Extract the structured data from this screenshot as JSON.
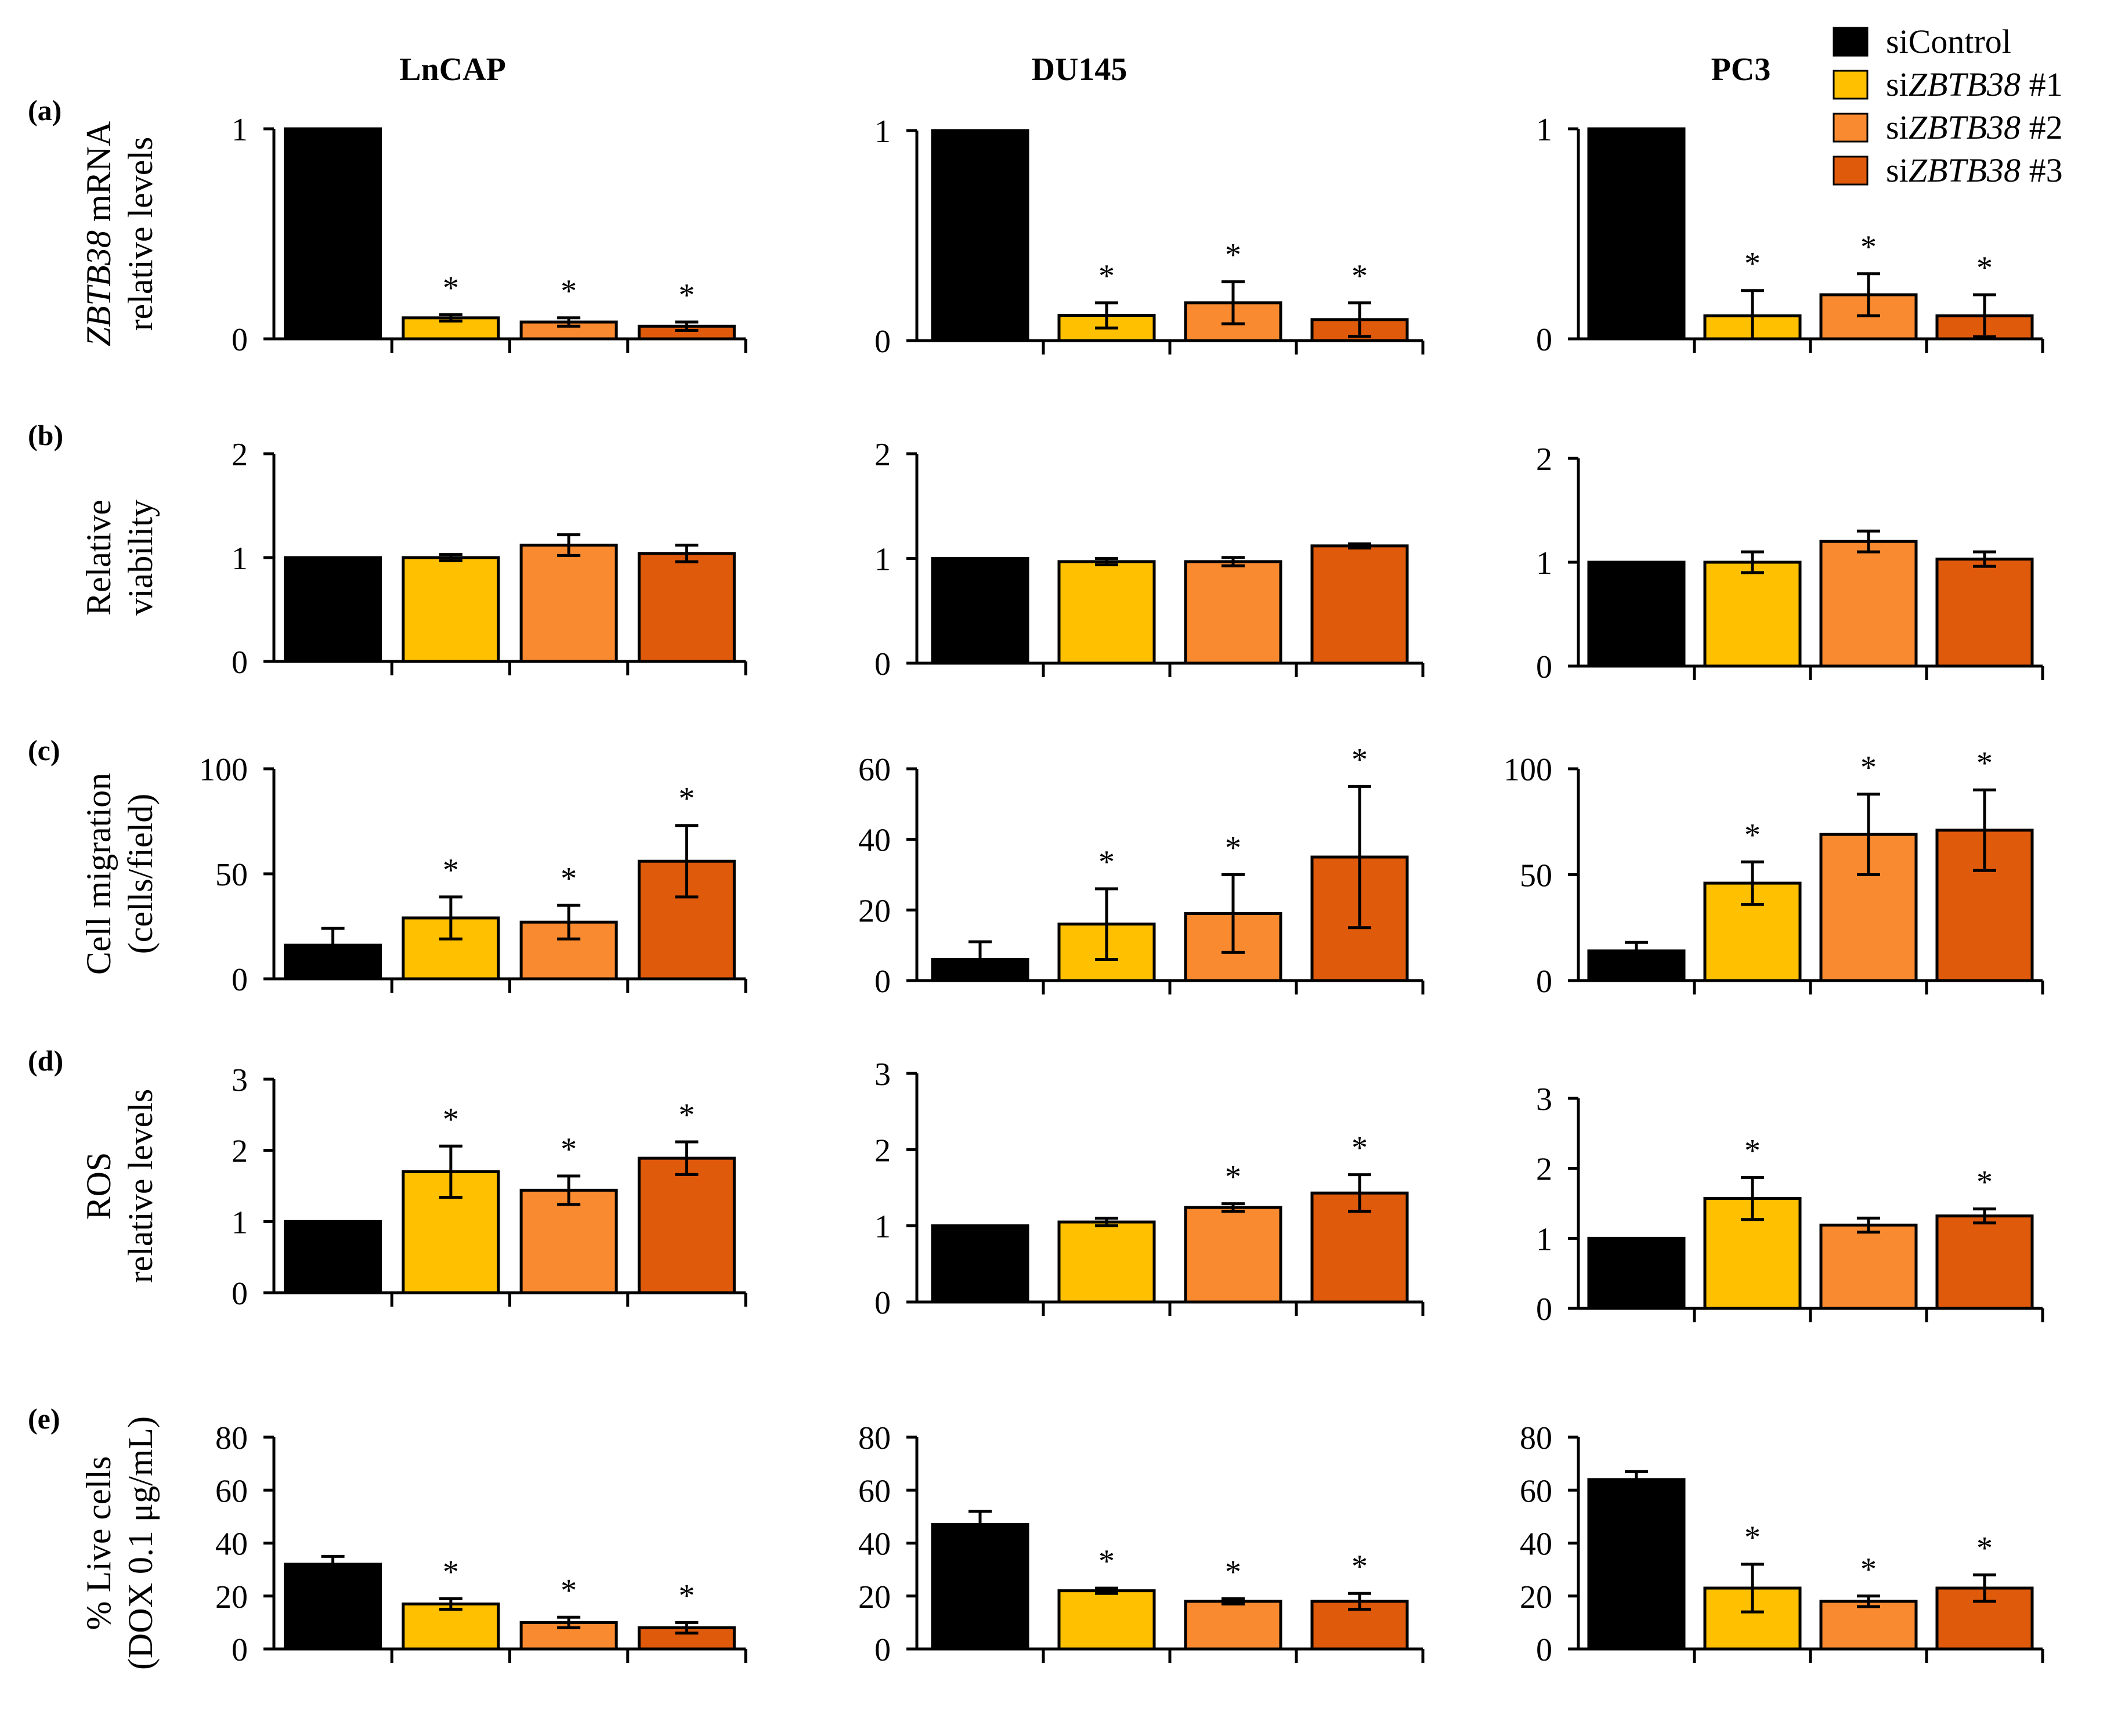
{
  "figure": {
    "columns": [
      "LnCAP",
      "DU145",
      "PC3"
    ],
    "legend": [
      {
        "pre": "siControl",
        "it": "",
        "post": "",
        "color": "#000000"
      },
      {
        "pre": "si",
        "it": "ZBTB38",
        "post": " #1",
        "color": "#FFC000"
      },
      {
        "pre": "si",
        "it": "ZBTB38",
        "post": " #2",
        "color": "#F98A30"
      },
      {
        "pre": "si",
        "it": "ZBTB38",
        "post": " #3",
        "color": "#E05A0C"
      }
    ],
    "rows": [
      {
        "label": "(a)",
        "ylabel": [
          {
            "t": "ZBTB38",
            "i": true
          },
          {
            "t": " mRNA",
            "i": false
          }
        ],
        "ylabel2": "relative levels"
      },
      {
        "label": "(b)",
        "ylabel": [
          {
            "t": "Relative",
            "i": false
          }
        ],
        "ylabel2": "viability"
      },
      {
        "label": "(c)",
        "ylabel": [
          {
            "t": "Cell migration",
            "i": false
          }
        ],
        "ylabel2": "(cells/field)"
      },
      {
        "label": "(d)",
        "ylabel": [
          {
            "t": "ROS",
            "i": false
          }
        ],
        "ylabel2": "relative levels"
      },
      {
        "label": "(e)",
        "ylabel": [
          {
            "t": "% Live cells",
            "i": false
          }
        ],
        "ylabel2": "(DOX 0.1 μg/mL)"
      }
    ],
    "significance_marker": "*"
  },
  "chart_data": [
    {
      "type": "bar",
      "row": "(a)",
      "cell_line": "LnCAP",
      "categories": [
        "siControl",
        "siZBTB38 #1",
        "siZBTB38 #2",
        "siZBTB38 #3"
      ],
      "values": [
        1,
        0.1,
        0.08,
        0.06
      ],
      "errors": [
        0,
        0.015,
        0.02,
        0.02
      ],
      "significant": [
        false,
        true,
        true,
        true
      ],
      "ylim": [
        0,
        1
      ],
      "yticks": [
        0,
        1
      ]
    },
    {
      "type": "bar",
      "row": "(a)",
      "cell_line": "DU145",
      "categories": [
        "siControl",
        "siZBTB38 #1",
        "siZBTB38 #2",
        "siZBTB38 #3"
      ],
      "values": [
        1,
        0.12,
        0.18,
        0.1
      ],
      "errors": [
        0,
        0.06,
        0.1,
        0.08
      ],
      "significant": [
        false,
        true,
        true,
        true
      ],
      "ylim": [
        0,
        1
      ],
      "yticks": [
        0,
        1
      ]
    },
    {
      "type": "bar",
      "row": "(a)",
      "cell_line": "PC3",
      "categories": [
        "siControl",
        "siZBTB38 #1",
        "siZBTB38 #2",
        "siZBTB38 #3"
      ],
      "values": [
        1,
        0.11,
        0.21,
        0.11
      ],
      "errors": [
        0,
        0.12,
        0.1,
        0.1
      ],
      "significant": [
        false,
        true,
        true,
        true
      ],
      "ylim": [
        0,
        1
      ],
      "yticks": [
        0,
        1
      ]
    },
    {
      "type": "bar",
      "row": "(b)",
      "cell_line": "LnCAP",
      "categories": [
        "siControl",
        "siZBTB38 #1",
        "siZBTB38 #2",
        "siZBTB38 #3"
      ],
      "values": [
        1,
        1.0,
        1.12,
        1.04
      ],
      "errors": [
        0,
        0.03,
        0.1,
        0.08
      ],
      "significant": [
        false,
        false,
        false,
        false
      ],
      "ylim": [
        0,
        2
      ],
      "yticks": [
        0,
        1,
        2
      ]
    },
    {
      "type": "bar",
      "row": "(b)",
      "cell_line": "DU145",
      "categories": [
        "siControl",
        "siZBTB38 #1",
        "siZBTB38 #2",
        "siZBTB38 #3"
      ],
      "values": [
        1,
        0.97,
        0.97,
        1.12
      ],
      "errors": [
        0,
        0.03,
        0.04,
        0.02
      ],
      "significant": [
        false,
        false,
        false,
        false
      ],
      "ylim": [
        0,
        2
      ],
      "yticks": [
        0,
        1,
        2
      ]
    },
    {
      "type": "bar",
      "row": "(b)",
      "cell_line": "PC3",
      "categories": [
        "siControl",
        "siZBTB38 #1",
        "siZBTB38 #2",
        "siZBTB38 #3"
      ],
      "values": [
        1,
        1.0,
        1.2,
        1.03
      ],
      "errors": [
        0,
        0.1,
        0.1,
        0.07
      ],
      "significant": [
        false,
        false,
        false,
        false
      ],
      "ylim": [
        0,
        2
      ],
      "yticks": [
        0,
        1,
        2
      ]
    },
    {
      "type": "bar",
      "row": "(c)",
      "cell_line": "LnCAP",
      "categories": [
        "siControl",
        "siZBTB38 #1",
        "siZBTB38 #2",
        "siZBTB38 #3"
      ],
      "values": [
        16,
        29,
        27,
        56
      ],
      "errors": [
        8,
        10,
        8,
        17
      ],
      "significant": [
        false,
        true,
        true,
        true
      ],
      "ylim": [
        0,
        100
      ],
      "yticks": [
        0,
        50,
        100
      ]
    },
    {
      "type": "bar",
      "row": "(c)",
      "cell_line": "DU145",
      "categories": [
        "siControl",
        "siZBTB38 #1",
        "siZBTB38 #2",
        "siZBTB38 #3"
      ],
      "values": [
        6,
        16,
        19,
        35
      ],
      "errors": [
        5,
        10,
        11,
        20
      ],
      "significant": [
        false,
        true,
        true,
        true
      ],
      "ylim": [
        0,
        60
      ],
      "yticks": [
        0,
        20,
        40,
        60
      ]
    },
    {
      "type": "bar",
      "row": "(c)",
      "cell_line": "PC3",
      "categories": [
        "siControl",
        "siZBTB38 #1",
        "siZBTB38 #2",
        "siZBTB38 #3"
      ],
      "values": [
        14,
        46,
        69,
        71
      ],
      "errors": [
        4,
        10,
        19,
        19
      ],
      "significant": [
        false,
        true,
        true,
        true
      ],
      "ylim": [
        0,
        100
      ],
      "yticks": [
        0,
        50,
        100
      ]
    },
    {
      "type": "bar",
      "row": "(d)",
      "cell_line": "LnCAP",
      "categories": [
        "siControl",
        "siZBTB38 #1",
        "siZBTB38 #2",
        "siZBTB38 #3"
      ],
      "values": [
        1,
        1.7,
        1.44,
        1.89
      ],
      "errors": [
        0,
        0.36,
        0.2,
        0.23
      ],
      "significant": [
        false,
        true,
        true,
        true
      ],
      "ylim": [
        0,
        3
      ],
      "yticks": [
        0,
        1,
        2,
        3
      ]
    },
    {
      "type": "bar",
      "row": "(d)",
      "cell_line": "DU145",
      "categories": [
        "siControl",
        "siZBTB38 #1",
        "siZBTB38 #2",
        "siZBTB38 #3"
      ],
      "values": [
        1,
        1.05,
        1.24,
        1.43
      ],
      "errors": [
        0,
        0.05,
        0.05,
        0.24
      ],
      "significant": [
        false,
        false,
        true,
        true
      ],
      "ylim": [
        0,
        3
      ],
      "yticks": [
        0,
        1,
        2,
        3
      ]
    },
    {
      "type": "bar",
      "row": "(d)",
      "cell_line": "PC3",
      "categories": [
        "siControl",
        "siZBTB38 #1",
        "siZBTB38 #2",
        "siZBTB38 #3"
      ],
      "values": [
        1,
        1.57,
        1.19,
        1.32
      ],
      "errors": [
        0,
        0.3,
        0.1,
        0.1
      ],
      "significant": [
        false,
        true,
        false,
        true
      ],
      "ylim": [
        0,
        3
      ],
      "yticks": [
        0,
        1,
        2,
        3
      ]
    },
    {
      "type": "bar",
      "row": "(e)",
      "cell_line": "LnCAP",
      "categories": [
        "siControl",
        "siZBTB38 #1",
        "siZBTB38 #2",
        "siZBTB38 #3"
      ],
      "values": [
        32,
        17,
        10,
        8
      ],
      "errors": [
        3,
        2,
        2,
        2
      ],
      "significant": [
        false,
        true,
        true,
        true
      ],
      "ylim": [
        0,
        80
      ],
      "yticks": [
        0,
        20,
        40,
        60,
        80
      ]
    },
    {
      "type": "bar",
      "row": "(e)",
      "cell_line": "DU145",
      "categories": [
        "siControl",
        "siZBTB38 #1",
        "siZBTB38 #2",
        "siZBTB38 #3"
      ],
      "values": [
        47,
        22,
        18,
        18
      ],
      "errors": [
        5,
        1,
        1,
        3
      ],
      "significant": [
        false,
        true,
        true,
        true
      ],
      "ylim": [
        0,
        80
      ],
      "yticks": [
        0,
        20,
        40,
        60,
        80
      ]
    },
    {
      "type": "bar",
      "row": "(e)",
      "cell_line": "PC3",
      "categories": [
        "siControl",
        "siZBTB38 #1",
        "siZBTB38 #2",
        "siZBTB38 #3"
      ],
      "values": [
        64,
        23,
        18,
        23
      ],
      "errors": [
        3,
        9,
        2,
        5
      ],
      "significant": [
        false,
        true,
        true,
        true
      ],
      "ylim": [
        0,
        80
      ],
      "yticks": [
        0,
        20,
        40,
        60,
        80
      ]
    }
  ]
}
